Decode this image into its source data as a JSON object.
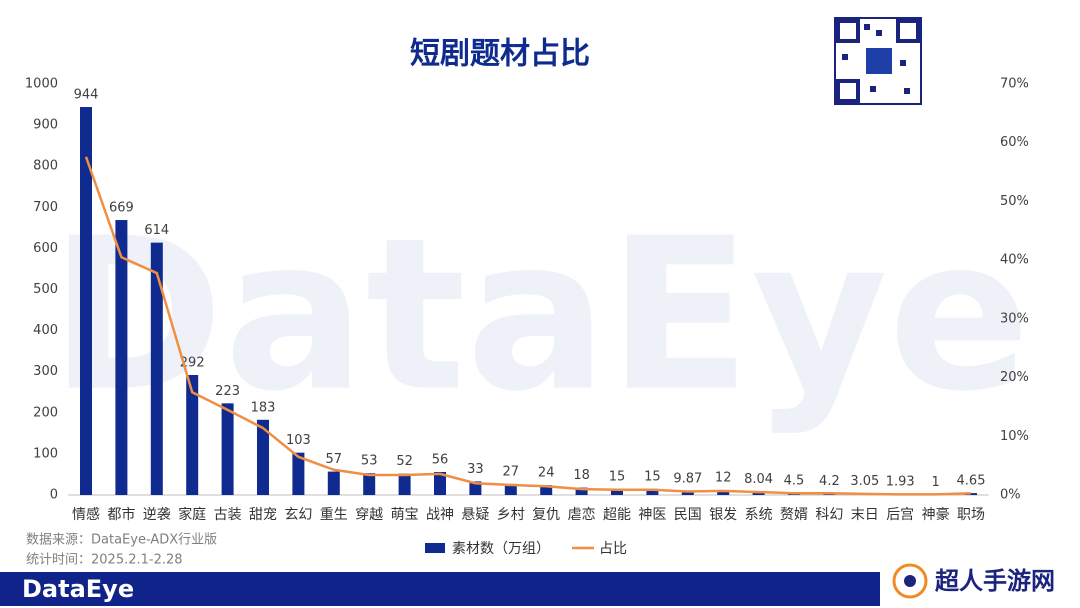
{
  "chart_data": {
    "type": "bar",
    "title": "短剧题材占比",
    "categories": [
      "情感",
      "都市",
      "逆袭",
      "家庭",
      "古装",
      "甜宠",
      "玄幻",
      "重生",
      "穿越",
      "萌宝",
      "战神",
      "悬疑",
      "乡村",
      "复仇",
      "虐恋",
      "超能",
      "神医",
      "民国",
      "银发",
      "系统",
      "赘婿",
      "科幻",
      "末日",
      "后宫",
      "神豪",
      "职场"
    ],
    "series": [
      {
        "name": "素材数（万组）",
        "type": "bar",
        "color": "#0f2b8f",
        "values": [
          944,
          669,
          614,
          292,
          223,
          183,
          103,
          57,
          53,
          52,
          56,
          33,
          27,
          24,
          18,
          15,
          15,
          9.87,
          12,
          8.04,
          4.5,
          4.2,
          3.05,
          1.93,
          1,
          4.65
        ]
      },
      {
        "name": "占比",
        "type": "line",
        "axis": "y2",
        "color": "#ef8f45",
        "values": [
          57.6,
          40.5,
          37.8,
          17.5,
          14.5,
          11.4,
          6.5,
          4.3,
          3.4,
          3.4,
          3.6,
          2.0,
          1.7,
          1.5,
          1.0,
          0.9,
          0.9,
          0.6,
          0.7,
          0.5,
          0.3,
          0.3,
          0.2,
          0.1,
          0.1,
          0.3
        ]
      }
    ],
    "ylim": [
      0,
      1000
    ],
    "yticks": [
      0,
      100,
      200,
      300,
      400,
      500,
      600,
      700,
      800,
      900,
      1000
    ],
    "y2lim": [
      0,
      70
    ],
    "y2ticks": [
      {
        "value": 0,
        "label": "0%"
      },
      {
        "value": 10,
        "label": "10%"
      },
      {
        "value": 20,
        "label": "20%"
      },
      {
        "value": 30,
        "label": "30%"
      },
      {
        "value": 40,
        "label": "40%"
      },
      {
        "value": 50,
        "label": "50%"
      },
      {
        "value": 60,
        "label": "60%"
      },
      {
        "value": 70,
        "label": "70%"
      }
    ],
    "legend": "bottom",
    "grid": false
  },
  "source": "数据来源：DataEye-ADX行业版",
  "period": "统计时间：2025.2.1-2.28",
  "watermark": "DataEye",
  "logo": "DataEye",
  "site": "超人手游网"
}
